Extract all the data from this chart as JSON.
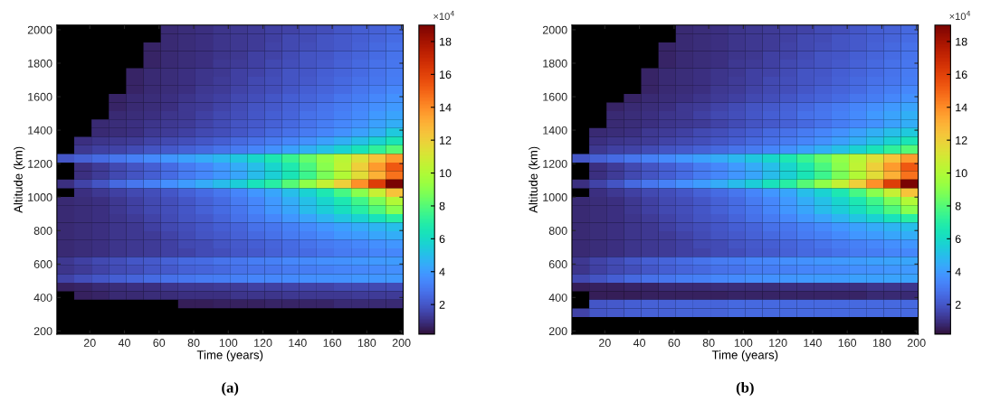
{
  "chart_data": [
    {
      "type": "heatmap",
      "title": "(a)",
      "xlabel": "Time (years)",
      "ylabel": "Altitude (km)",
      "clabel": "×10$^{4}$",
      "x": [
        6,
        16,
        26,
        36,
        46,
        56,
        66,
        76,
        86,
        96,
        106,
        116,
        126,
        136,
        146,
        156,
        166,
        176,
        186,
        196
      ],
      "y": [
        2002,
        1950,
        1899,
        1848,
        1796,
        1745,
        1694,
        1643,
        1591,
        1540,
        1489,
        1438,
        1386,
        1335,
        1284,
        1232,
        1181,
        1130,
        1079,
        1027,
        976,
        925,
        873,
        822,
        771,
        720,
        668,
        617,
        566,
        514,
        463,
        412,
        361
      ],
      "xlim": [
        1,
        201
      ],
      "ylim": [
        181,
        2028
      ],
      "xticks": [
        20,
        40,
        60,
        80,
        100,
        120,
        140,
        160,
        180,
        200
      ],
      "yticks": [
        200,
        400,
        600,
        800,
        1000,
        1200,
        1400,
        1600,
        1800,
        2000
      ],
      "clim": [
        0.2,
        19
      ],
      "cticks": [
        2,
        4,
        6,
        8,
        10,
        12,
        14,
        16,
        18
      ],
      "cells": [
        [
          null,
          null,
          null,
          null,
          null,
          null,
          0.8,
          0.9,
          1.0,
          1.1,
          1.2,
          1.3,
          1.4,
          1.5,
          1.7,
          1.8,
          2.0,
          2.2,
          2.3,
          2.5
        ],
        [
          null,
          null,
          null,
          null,
          null,
          null,
          0.8,
          0.9,
          1.0,
          1.1,
          1.2,
          1.3,
          1.4,
          1.6,
          1.7,
          1.9,
          2.1,
          2.2,
          2.4,
          2.6
        ],
        [
          null,
          null,
          null,
          null,
          null,
          0.7,
          0.8,
          0.9,
          1.0,
          1.1,
          1.2,
          1.3,
          1.5,
          1.6,
          1.8,
          1.9,
          2.1,
          2.3,
          2.5,
          2.7
        ],
        [
          null,
          null,
          null,
          null,
          null,
          0.7,
          0.8,
          0.9,
          1.0,
          1.1,
          1.2,
          1.4,
          1.5,
          1.7,
          1.9,
          2.0,
          2.2,
          2.4,
          2.6,
          2.8
        ],
        [
          null,
          null,
          null,
          null,
          null,
          0.7,
          0.8,
          0.9,
          1.0,
          1.2,
          1.3,
          1.4,
          1.6,
          1.8,
          1.9,
          2.1,
          2.3,
          2.5,
          2.7,
          2.9
        ],
        [
          null,
          null,
          null,
          null,
          0.7,
          0.8,
          0.9,
          1.0,
          1.1,
          1.2,
          1.4,
          1.5,
          1.7,
          1.9,
          2.0,
          2.2,
          2.4,
          2.6,
          2.8,
          3.0
        ],
        [
          null,
          null,
          null,
          null,
          0.7,
          0.8,
          0.9,
          1.0,
          1.1,
          1.3,
          1.4,
          1.6,
          1.8,
          1.9,
          2.1,
          2.3,
          2.5,
          2.7,
          2.9,
          3.1
        ],
        [
          null,
          null,
          null,
          null,
          0.7,
          0.8,
          0.9,
          1.0,
          1.2,
          1.3,
          1.5,
          1.6,
          1.8,
          2.0,
          2.2,
          2.4,
          2.6,
          2.9,
          3.1,
          3.4
        ],
        [
          null,
          null,
          null,
          0.7,
          0.8,
          0.9,
          1.0,
          1.1,
          1.3,
          1.4,
          1.6,
          1.8,
          2.0,
          2.2,
          2.4,
          2.6,
          2.9,
          3.1,
          3.4,
          3.7
        ],
        [
          null,
          null,
          null,
          0.7,
          0.8,
          0.9,
          1.0,
          1.2,
          1.3,
          1.5,
          1.7,
          1.9,
          2.1,
          2.3,
          2.5,
          2.8,
          3.0,
          3.3,
          3.6,
          3.9
        ],
        [
          null,
          null,
          null,
          0.8,
          0.9,
          1.0,
          1.1,
          1.2,
          1.4,
          1.6,
          1.8,
          2.0,
          2.2,
          2.4,
          2.7,
          2.9,
          3.2,
          3.5,
          3.9,
          4.2
        ],
        [
          null,
          null,
          0.8,
          0.9,
          1.0,
          1.1,
          1.2,
          1.3,
          1.5,
          1.7,
          1.9,
          2.1,
          2.3,
          2.5,
          2.8,
          3.1,
          3.4,
          3.7,
          4.1,
          4.5
        ],
        [
          null,
          null,
          0.8,
          0.9,
          1.0,
          1.2,
          1.3,
          1.4,
          1.6,
          1.8,
          2.0,
          2.2,
          2.5,
          2.7,
          3.0,
          3.3,
          3.7,
          4.1,
          4.6,
          5.4
        ],
        [
          null,
          1.0,
          1.1,
          1.2,
          1.3,
          1.5,
          1.6,
          1.8,
          2.0,
          2.2,
          2.5,
          2.7,
          3.0,
          3.3,
          3.7,
          4.1,
          4.6,
          5.1,
          5.7,
          6.5
        ],
        [
          null,
          1.2,
          1.4,
          1.5,
          1.7,
          1.9,
          2.1,
          2.3,
          2.5,
          2.8,
          3.0,
          3.3,
          3.7,
          4.1,
          4.6,
          5.1,
          5.7,
          6.4,
          7.2,
          8.0
        ],
        [
          2.0,
          2.3,
          2.6,
          2.9,
          3.2,
          3.5,
          3.8,
          4.1,
          4.4,
          4.8,
          5.3,
          5.9,
          6.6,
          7.4,
          8.3,
          9.2,
          10.2,
          11.3,
          12.4,
          13.6
        ],
        [
          null,
          1.0,
          1.3,
          1.6,
          1.9,
          2.2,
          2.6,
          3.0,
          3.4,
          3.9,
          4.4,
          5.0,
          5.8,
          6.7,
          7.8,
          9.0,
          10.4,
          12.0,
          13.6,
          15.3
        ],
        [
          null,
          1.0,
          1.3,
          1.6,
          1.9,
          2.2,
          2.6,
          3.0,
          3.4,
          3.8,
          4.3,
          4.9,
          5.6,
          6.5,
          7.5,
          8.7,
          10.0,
          11.5,
          13.0,
          14.6
        ],
        [
          1.0,
          1.5,
          1.9,
          2.5,
          2.9,
          3.2,
          3.6,
          4.0,
          4.4,
          4.9,
          5.5,
          6.3,
          7.0,
          8.0,
          9.1,
          10.5,
          12.0,
          13.9,
          16.2,
          19.0
        ],
        [
          null,
          1.0,
          1.2,
          1.4,
          1.6,
          1.8,
          2.0,
          2.3,
          2.6,
          2.9,
          3.3,
          3.8,
          4.3,
          5.0,
          5.7,
          6.6,
          7.7,
          9.0,
          10.6,
          12.4
        ],
        [
          0.8,
          0.9,
          1.0,
          1.2,
          1.4,
          1.6,
          1.8,
          2.0,
          2.3,
          2.6,
          3.0,
          3.4,
          3.9,
          4.5,
          5.1,
          5.8,
          6.6,
          7.6,
          8.7,
          10.0
        ],
        [
          0.8,
          0.9,
          1.0,
          1.2,
          1.4,
          1.6,
          1.8,
          2.0,
          2.3,
          2.6,
          2.9,
          3.3,
          3.8,
          4.3,
          4.9,
          5.5,
          6.2,
          7.0,
          7.9,
          9.0
        ],
        [
          0.8,
          0.9,
          1.0,
          1.1,
          1.3,
          1.5,
          1.7,
          1.9,
          2.1,
          2.4,
          2.7,
          3.0,
          3.4,
          3.8,
          4.2,
          4.7,
          5.2,
          5.7,
          6.3,
          7.0
        ],
        [
          0.8,
          0.9,
          1.0,
          1.1,
          1.2,
          1.4,
          1.6,
          1.8,
          2.0,
          2.2,
          2.4,
          2.7,
          2.9,
          3.2,
          3.5,
          3.8,
          4.1,
          4.4,
          4.7,
          5.0
        ],
        [
          0.8,
          0.9,
          1.0,
          1.1,
          1.2,
          1.3,
          1.5,
          1.7,
          1.9,
          2.1,
          2.3,
          2.5,
          2.7,
          3.0,
          3.2,
          3.5,
          3.8,
          4.0,
          4.3,
          4.5
        ],
        [
          0.8,
          0.9,
          1.0,
          1.1,
          1.2,
          1.3,
          1.4,
          1.6,
          1.7,
          1.9,
          2.1,
          2.2,
          2.4,
          2.6,
          2.8,
          3.0,
          3.2,
          3.4,
          3.6,
          3.8
        ],
        [
          0.8,
          0.9,
          1.0,
          1.1,
          1.2,
          1.3,
          1.4,
          1.5,
          1.7,
          1.8,
          2.0,
          2.1,
          2.3,
          2.5,
          2.6,
          2.8,
          3.0,
          3.1,
          3.3,
          3.4
        ],
        [
          1.2,
          1.4,
          1.6,
          1.8,
          2.0,
          2.1,
          2.3,
          2.5,
          2.6,
          2.8,
          2.9,
          3.1,
          3.2,
          3.4,
          3.5,
          3.6,
          3.7,
          3.8,
          3.9,
          4.0
        ],
        [
          1.1,
          1.3,
          1.5,
          1.7,
          1.8,
          2.0,
          2.1,
          2.3,
          2.4,
          2.5,
          2.7,
          2.8,
          2.9,
          3.0,
          3.1,
          3.2,
          3.3,
          3.4,
          3.5,
          3.6
        ],
        [
          1.5,
          1.8,
          2.0,
          2.2,
          2.4,
          2.6,
          2.7,
          2.9,
          3.0,
          3.1,
          3.2,
          3.3,
          3.4,
          3.5,
          3.6,
          3.7,
          3.7,
          3.8,
          3.8,
          3.9
        ],
        [
          0.6,
          0.7,
          0.8,
          0.9,
          1.0,
          1.0,
          1.1,
          1.2,
          1.2,
          1.3,
          1.3,
          1.4,
          1.4,
          1.5,
          1.5,
          1.5,
          1.6,
          1.6,
          1.6,
          1.7
        ],
        [
          null,
          0.6,
          0.7,
          0.8,
          0.8,
          0.9,
          0.9,
          1.0,
          1.0,
          1.0,
          1.1,
          1.1,
          1.1,
          1.2,
          1.2,
          1.2,
          1.2,
          1.3,
          1.3,
          1.3
        ],
        [
          null,
          null,
          null,
          null,
          null,
          null,
          null,
          0.5,
          0.5,
          0.6,
          0.6,
          0.6,
          0.7,
          0.7,
          0.7,
          0.7,
          0.8,
          0.8,
          0.8,
          0.8
        ]
      ]
    },
    {
      "type": "heatmap",
      "title": "(b)",
      "xlabel": "Time (years)",
      "ylabel": "Altitude (km)",
      "clabel": "×10$^{4}$",
      "x": [
        6,
        16,
        26,
        36,
        46,
        56,
        66,
        76,
        86,
        96,
        106,
        116,
        126,
        136,
        146,
        156,
        166,
        176,
        186,
        196
      ],
      "y": [
        2002,
        1950,
        1899,
        1848,
        1796,
        1745,
        1694,
        1643,
        1591,
        1540,
        1489,
        1438,
        1386,
        1335,
        1284,
        1232,
        1181,
        1130,
        1079,
        1027,
        976,
        925,
        873,
        822,
        771,
        720,
        668,
        617,
        566,
        514,
        463,
        412,
        361,
        309
      ],
      "xlim": [
        1,
        201
      ],
      "ylim": [
        181,
        2028
      ],
      "xticks": [
        20,
        40,
        60,
        80,
        100,
        120,
        140,
        160,
        180,
        200
      ],
      "yticks": [
        200,
        400,
        600,
        800,
        1000,
        1200,
        1400,
        1600,
        1800,
        2000
      ],
      "clim": [
        0.2,
        19
      ],
      "cticks": [
        2,
        4,
        6,
        8,
        10,
        12,
        14,
        16,
        18
      ],
      "cells": [
        [
          null,
          null,
          null,
          null,
          null,
          null,
          0.8,
          0.9,
          1.0,
          1.1,
          1.2,
          1.3,
          1.4,
          1.5,
          1.7,
          1.8,
          2.0,
          2.2,
          2.3,
          2.5
        ],
        [
          null,
          null,
          null,
          null,
          null,
          null,
          0.8,
          0.9,
          1.0,
          1.1,
          1.2,
          1.3,
          1.4,
          1.6,
          1.7,
          1.9,
          2.1,
          2.2,
          2.4,
          2.6
        ],
        [
          null,
          null,
          null,
          null,
          null,
          0.7,
          0.8,
          0.9,
          1.0,
          1.1,
          1.2,
          1.3,
          1.5,
          1.6,
          1.8,
          1.9,
          2.1,
          2.3,
          2.5,
          2.7
        ],
        [
          null,
          null,
          null,
          null,
          null,
          0.7,
          0.8,
          0.9,
          1.0,
          1.1,
          1.2,
          1.4,
          1.5,
          1.7,
          1.9,
          2.0,
          2.2,
          2.4,
          2.6,
          2.8
        ],
        [
          null,
          null,
          null,
          null,
          null,
          0.7,
          0.8,
          0.9,
          1.0,
          1.2,
          1.3,
          1.4,
          1.6,
          1.8,
          1.9,
          2.1,
          2.3,
          2.5,
          2.7,
          2.9
        ],
        [
          null,
          null,
          null,
          null,
          0.7,
          0.8,
          0.9,
          1.0,
          1.1,
          1.2,
          1.4,
          1.5,
          1.7,
          1.9,
          2.0,
          2.2,
          2.4,
          2.6,
          2.8,
          3.0
        ],
        [
          null,
          null,
          null,
          null,
          0.7,
          0.8,
          0.9,
          1.0,
          1.1,
          1.3,
          1.4,
          1.6,
          1.8,
          1.9,
          2.1,
          2.3,
          2.5,
          2.7,
          2.9,
          3.1
        ],
        [
          null,
          null,
          null,
          null,
          0.7,
          0.8,
          0.9,
          1.0,
          1.2,
          1.3,
          1.5,
          1.6,
          1.8,
          2.0,
          2.2,
          2.4,
          2.6,
          2.9,
          3.1,
          3.4
        ],
        [
          null,
          null,
          null,
          0.7,
          0.8,
          0.9,
          1.0,
          1.1,
          1.3,
          1.4,
          1.6,
          1.8,
          2.0,
          2.2,
          2.4,
          2.6,
          2.9,
          3.1,
          3.4,
          3.7
        ],
        [
          null,
          null,
          0.7,
          0.8,
          0.9,
          1.0,
          1.2,
          1.3,
          1.5,
          1.7,
          1.9,
          2.1,
          2.3,
          2.5,
          2.8,
          3.0,
          3.3,
          3.6,
          3.9,
          4.2
        ],
        [
          null,
          null,
          0.8,
          0.9,
          1.0,
          1.1,
          1.2,
          1.4,
          1.6,
          1.8,
          2.0,
          2.2,
          2.4,
          2.7,
          2.9,
          3.2,
          3.5,
          3.9,
          4.2,
          4.6
        ],
        [
          null,
          null,
          0.8,
          0.9,
          1.0,
          1.1,
          1.2,
          1.3,
          1.5,
          1.7,
          1.9,
          2.1,
          2.3,
          2.5,
          2.8,
          3.1,
          3.4,
          3.7,
          4.1,
          4.5
        ],
        [
          null,
          0.8,
          0.9,
          1.0,
          1.2,
          1.3,
          1.4,
          1.6,
          1.8,
          2.0,
          2.2,
          2.5,
          2.7,
          3.0,
          3.3,
          3.7,
          4.1,
          4.6,
          5.0,
          5.4
        ],
        [
          null,
          1.0,
          1.1,
          1.2,
          1.3,
          1.5,
          1.6,
          1.8,
          2.0,
          2.2,
          2.5,
          2.7,
          3.0,
          3.3,
          3.7,
          4.1,
          4.6,
          5.1,
          5.7,
          6.5
        ],
        [
          null,
          1.2,
          1.4,
          1.5,
          1.7,
          1.9,
          2.1,
          2.3,
          2.5,
          2.8,
          3.0,
          3.3,
          3.7,
          4.1,
          4.6,
          5.1,
          5.7,
          6.4,
          7.2,
          8.0
        ],
        [
          2.0,
          2.3,
          2.6,
          2.9,
          3.2,
          3.5,
          3.8,
          4.1,
          4.4,
          4.8,
          5.3,
          5.9,
          6.6,
          7.4,
          8.3,
          9.2,
          10.2,
          11.3,
          12.4,
          13.6
        ],
        [
          null,
          1.0,
          1.3,
          1.6,
          1.9,
          2.2,
          2.6,
          3.0,
          3.4,
          3.9,
          4.4,
          5.0,
          5.8,
          6.7,
          7.8,
          9.0,
          10.4,
          12.0,
          13.6,
          15.3
        ],
        [
          null,
          1.0,
          1.3,
          1.6,
          1.9,
          2.2,
          2.6,
          3.0,
          3.4,
          3.8,
          4.3,
          4.9,
          5.6,
          6.5,
          7.5,
          8.7,
          10.0,
          11.5,
          13.0,
          14.6
        ],
        [
          1.0,
          1.5,
          1.9,
          2.5,
          2.9,
          3.2,
          3.6,
          4.0,
          4.4,
          4.9,
          5.5,
          6.3,
          7.0,
          8.0,
          9.1,
          10.5,
          12.0,
          13.9,
          16.2,
          19.0
        ],
        [
          null,
          1.0,
          1.2,
          1.4,
          1.6,
          1.8,
          2.0,
          2.3,
          2.6,
          2.9,
          3.3,
          3.8,
          4.3,
          5.0,
          5.7,
          6.6,
          7.7,
          9.0,
          10.6,
          12.4
        ],
        [
          0.8,
          0.9,
          1.0,
          1.2,
          1.4,
          1.6,
          1.8,
          2.0,
          2.3,
          2.6,
          3.0,
          3.4,
          3.9,
          4.5,
          5.1,
          5.8,
          6.6,
          7.6,
          8.7,
          10.0
        ],
        [
          0.8,
          0.9,
          1.0,
          1.2,
          1.4,
          1.6,
          1.8,
          2.0,
          2.3,
          2.6,
          2.9,
          3.3,
          3.8,
          4.3,
          4.9,
          5.5,
          6.2,
          7.0,
          7.9,
          9.0
        ],
        [
          0.8,
          0.9,
          1.0,
          1.1,
          1.3,
          1.5,
          1.7,
          1.9,
          2.1,
          2.4,
          2.7,
          3.0,
          3.4,
          3.8,
          4.2,
          4.7,
          5.2,
          5.7,
          6.3,
          7.0
        ],
        [
          0.8,
          0.9,
          1.0,
          1.1,
          1.2,
          1.4,
          1.6,
          1.8,
          2.0,
          2.2,
          2.4,
          2.7,
          2.9,
          3.2,
          3.5,
          3.8,
          4.1,
          4.4,
          4.7,
          5.0
        ],
        [
          0.8,
          0.9,
          1.0,
          1.1,
          1.2,
          1.3,
          1.5,
          1.7,
          1.9,
          2.1,
          2.3,
          2.5,
          2.7,
          3.0,
          3.2,
          3.5,
          3.8,
          4.0,
          4.3,
          4.5
        ],
        [
          0.8,
          0.9,
          1.0,
          1.1,
          1.2,
          1.3,
          1.4,
          1.6,
          1.7,
          1.9,
          2.1,
          2.2,
          2.4,
          2.6,
          2.8,
          3.0,
          3.2,
          3.4,
          3.6,
          3.8
        ],
        [
          0.8,
          0.9,
          1.0,
          1.1,
          1.2,
          1.3,
          1.4,
          1.5,
          1.7,
          1.8,
          2.0,
          2.1,
          2.3,
          2.5,
          2.6,
          2.8,
          3.0,
          3.1,
          3.3,
          3.4
        ],
        [
          1.2,
          1.5,
          1.7,
          2.0,
          2.2,
          2.4,
          2.6,
          2.8,
          3.0,
          3.1,
          3.3,
          3.4,
          3.6,
          3.7,
          3.8,
          3.9,
          4.0,
          4.1,
          4.2,
          4.3
        ],
        [
          1.1,
          1.4,
          1.6,
          1.8,
          2.0,
          2.2,
          2.4,
          2.5,
          2.7,
          2.8,
          3.0,
          3.1,
          3.2,
          3.3,
          3.4,
          3.5,
          3.6,
          3.7,
          3.8,
          3.9
        ],
        [
          1.6,
          1.9,
          2.2,
          2.5,
          2.7,
          2.9,
          3.1,
          3.2,
          3.4,
          3.5,
          3.6,
          3.7,
          3.8,
          3.9,
          4.0,
          4.0,
          4.1,
          4.1,
          4.2,
          4.2
        ],
        [
          0.5,
          0.6,
          0.6,
          0.7,
          0.7,
          0.8,
          0.8,
          0.8,
          0.9,
          0.9,
          0.9,
          0.9,
          1.0,
          1.0,
          1.0,
          1.0,
          1.0,
          1.1,
          1.1,
          1.1
        ],
        [
          null,
          0.5,
          0.5,
          0.5,
          0.6,
          0.6,
          0.6,
          0.6,
          0.6,
          0.7,
          0.7,
          0.7,
          0.7,
          0.7,
          0.7,
          0.7,
          0.7,
          0.8,
          0.8,
          0.8
        ],
        [
          null,
          2.0,
          2.1,
          2.2,
          2.3,
          2.3,
          2.4,
          2.4,
          2.4,
          2.5,
          2.5,
          2.5,
          2.5,
          2.5,
          2.5,
          2.5,
          2.5,
          2.5,
          2.5,
          2.5
        ],
        [
          1.5,
          2.0,
          2.1,
          2.2,
          2.3,
          2.3,
          2.4,
          2.4,
          2.4,
          2.5,
          2.5,
          2.5,
          2.5,
          2.5,
          2.5,
          2.5,
          2.5,
          2.5,
          2.5,
          2.5
        ]
      ]
    }
  ]
}
